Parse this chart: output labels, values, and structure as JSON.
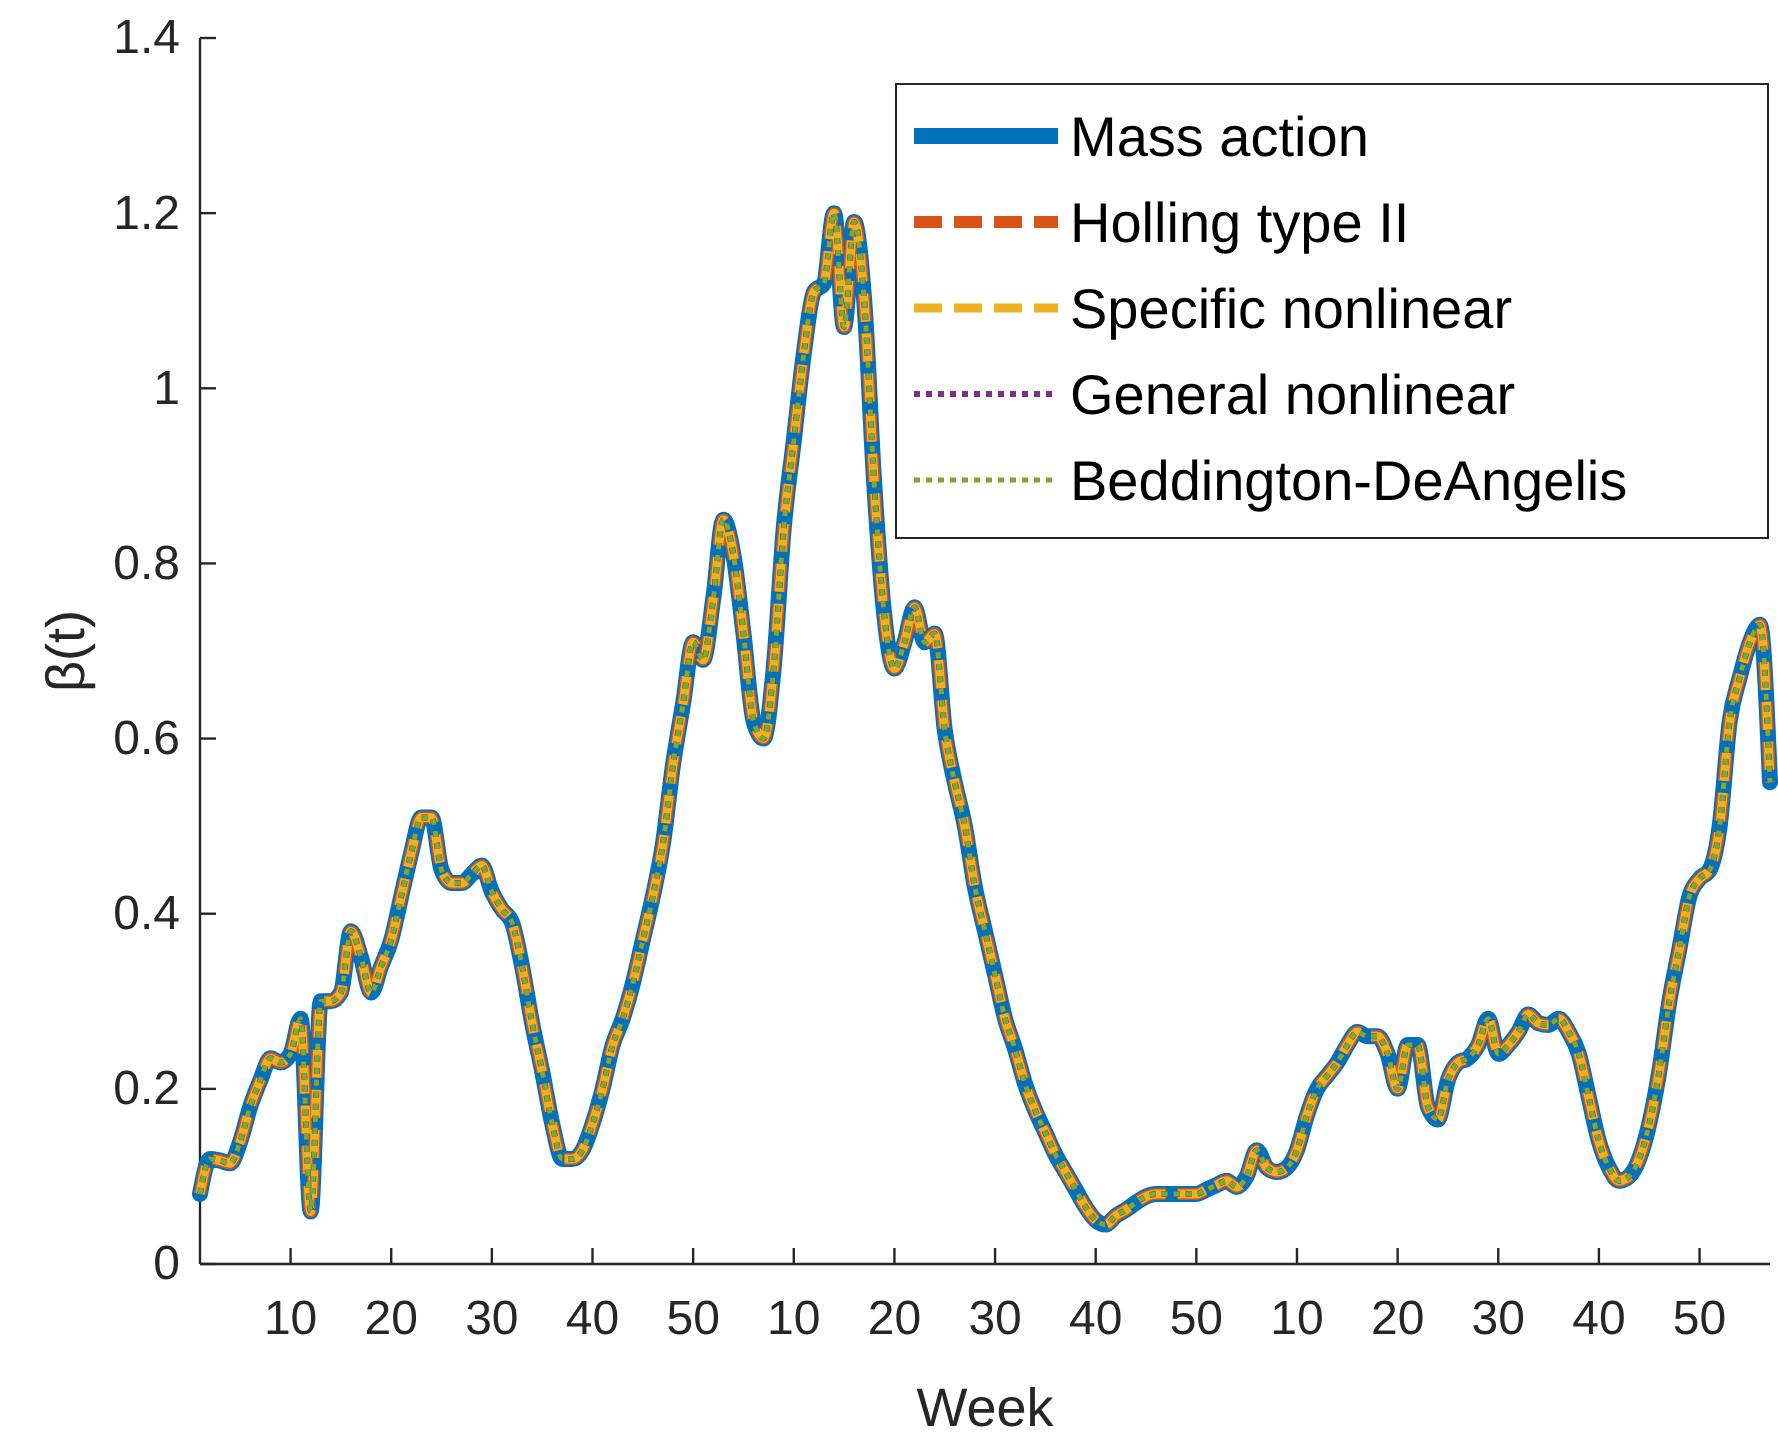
{
  "chart_data": {
    "type": "line",
    "xlabel": "Week",
    "ylabel": "β(t)",
    "categories": [
      null,
      null,
      null,
      null,
      null,
      null,
      null,
      null,
      null,
      "10",
      null,
      null,
      null,
      null,
      null,
      null,
      null,
      null,
      null,
      "20",
      null,
      null,
      null,
      null,
      null,
      null,
      null,
      null,
      null,
      "30",
      null,
      null,
      null,
      null,
      null,
      null,
      null,
      null,
      null,
      "40",
      null,
      null,
      null,
      null,
      null,
      null,
      null,
      null,
      null,
      "50",
      null,
      null,
      null,
      null,
      null,
      null,
      null,
      null,
      null,
      "10",
      null,
      null,
      null,
      null,
      null,
      null,
      null,
      null,
      null,
      "20",
      null,
      null,
      null,
      null,
      null,
      null,
      null,
      null,
      null,
      "30",
      null,
      null,
      null,
      null,
      null,
      null,
      null,
      null,
      null,
      "40",
      null,
      null,
      null,
      null,
      null,
      null,
      null,
      null,
      null,
      "50",
      null,
      null,
      null,
      null,
      null,
      null,
      null,
      null,
      null,
      "10",
      null,
      null,
      null,
      null,
      null,
      null,
      null,
      null,
      null,
      "20",
      null,
      null,
      null,
      null,
      null,
      null,
      null,
      null,
      null,
      "30",
      null,
      null,
      null,
      null,
      null,
      null,
      null,
      null,
      null,
      "40",
      null,
      null,
      null,
      null,
      null,
      null,
      null,
      null,
      null,
      "50",
      null,
      null,
      null,
      null,
      null,
      null,
      null
    ],
    "series": [
      {
        "name": "Mass action",
        "color": "#0072bd",
        "line_style": "solid",
        "values": [
          0.08,
          0.12,
          0.118,
          0.115,
          0.14,
          0.18,
          0.21,
          0.235,
          0.23,
          0.24,
          0.28,
          0.06,
          0.3,
          0.3,
          0.31,
          0.38,
          0.35,
          0.31,
          0.34,
          0.37,
          0.42,
          0.47,
          0.51,
          0.51,
          0.45,
          0.435,
          0.435,
          0.445,
          0.455,
          0.425,
          0.405,
          0.39,
          0.34,
          0.275,
          0.22,
          0.16,
          0.12,
          0.12,
          0.13,
          0.16,
          0.2,
          0.25,
          0.28,
          0.32,
          0.37,
          0.42,
          0.48,
          0.57,
          0.64,
          0.71,
          0.69,
          0.76,
          0.85,
          0.81,
          0.72,
          0.62,
          0.6,
          0.68,
          0.84,
          0.94,
          1.04,
          1.11,
          1.12,
          1.2,
          1.07,
          1.19,
          1.1,
          0.89,
          0.74,
          0.68,
          0.71,
          0.75,
          0.71,
          0.72,
          0.61,
          0.55,
          0.5,
          0.43,
          0.38,
          0.33,
          0.28,
          0.245,
          0.205,
          0.175,
          0.15,
          0.125,
          0.105,
          0.085,
          0.065,
          0.05,
          0.045,
          0.055,
          0.062,
          0.07,
          0.077,
          0.08,
          0.08,
          0.08,
          0.08,
          0.08,
          0.085,
          0.09,
          0.095,
          0.088,
          0.1,
          0.13,
          0.11,
          0.105,
          0.11,
          0.13,
          0.17,
          0.2,
          0.215,
          0.23,
          0.25,
          0.265,
          0.26,
          0.26,
          0.24,
          0.2,
          0.25,
          0.25,
          0.18,
          0.165,
          0.21,
          0.23,
          0.235,
          0.25,
          0.28,
          0.24,
          0.25,
          0.265,
          0.285,
          0.275,
          0.273,
          0.28,
          0.265,
          0.24,
          0.19,
          0.14,
          0.11,
          0.095,
          0.1,
          0.12,
          0.16,
          0.22,
          0.3,
          0.36,
          0.42,
          0.44,
          0.45,
          0.5,
          0.62,
          0.67,
          0.71,
          0.73,
          0.55
        ]
      },
      {
        "name": "Holling type II",
        "color": "#d95319",
        "line_style": "dashed",
        "values": [
          0.08,
          0.12,
          0.118,
          0.115,
          0.14,
          0.18,
          0.21,
          0.235,
          0.23,
          0.24,
          0.28,
          0.06,
          0.3,
          0.3,
          0.31,
          0.38,
          0.35,
          0.31,
          0.34,
          0.37,
          0.42,
          0.47,
          0.51,
          0.51,
          0.45,
          0.435,
          0.435,
          0.445,
          0.455,
          0.425,
          0.405,
          0.39,
          0.34,
          0.275,
          0.22,
          0.16,
          0.12,
          0.12,
          0.13,
          0.16,
          0.2,
          0.25,
          0.28,
          0.32,
          0.37,
          0.42,
          0.48,
          0.57,
          0.64,
          0.71,
          0.69,
          0.76,
          0.85,
          0.81,
          0.72,
          0.62,
          0.6,
          0.68,
          0.84,
          0.94,
          1.04,
          1.11,
          1.12,
          1.2,
          1.07,
          1.19,
          1.1,
          0.89,
          0.74,
          0.68,
          0.71,
          0.75,
          0.71,
          0.72,
          0.61,
          0.55,
          0.5,
          0.43,
          0.38,
          0.33,
          0.28,
          0.245,
          0.205,
          0.175,
          0.15,
          0.125,
          0.105,
          0.085,
          0.065,
          0.05,
          0.045,
          0.055,
          0.062,
          0.07,
          0.077,
          0.08,
          0.08,
          0.08,
          0.08,
          0.08,
          0.085,
          0.09,
          0.095,
          0.088,
          0.1,
          0.13,
          0.11,
          0.105,
          0.11,
          0.13,
          0.17,
          0.2,
          0.215,
          0.23,
          0.25,
          0.265,
          0.26,
          0.26,
          0.24,
          0.2,
          0.25,
          0.25,
          0.18,
          0.165,
          0.21,
          0.23,
          0.235,
          0.25,
          0.28,
          0.24,
          0.25,
          0.265,
          0.285,
          0.275,
          0.273,
          0.28,
          0.265,
          0.24,
          0.19,
          0.14,
          0.11,
          0.095,
          0.1,
          0.12,
          0.16,
          0.22,
          0.3,
          0.36,
          0.42,
          0.44,
          0.45,
          0.5,
          0.62,
          0.67,
          0.71,
          0.73,
          0.55
        ]
      },
      {
        "name": "Specific nonlinear",
        "color": "#edb120",
        "line_style": "dashed",
        "values": [
          0.08,
          0.12,
          0.118,
          0.115,
          0.14,
          0.18,
          0.21,
          0.235,
          0.23,
          0.24,
          0.28,
          0.06,
          0.3,
          0.3,
          0.31,
          0.38,
          0.35,
          0.31,
          0.34,
          0.37,
          0.42,
          0.47,
          0.51,
          0.51,
          0.45,
          0.435,
          0.435,
          0.445,
          0.455,
          0.425,
          0.405,
          0.39,
          0.34,
          0.275,
          0.22,
          0.16,
          0.12,
          0.12,
          0.13,
          0.16,
          0.2,
          0.25,
          0.28,
          0.32,
          0.37,
          0.42,
          0.48,
          0.57,
          0.64,
          0.71,
          0.69,
          0.76,
          0.85,
          0.81,
          0.72,
          0.62,
          0.6,
          0.68,
          0.84,
          0.94,
          1.04,
          1.11,
          1.12,
          1.2,
          1.07,
          1.19,
          1.1,
          0.89,
          0.74,
          0.68,
          0.71,
          0.75,
          0.71,
          0.72,
          0.61,
          0.55,
          0.5,
          0.43,
          0.38,
          0.33,
          0.28,
          0.245,
          0.205,
          0.175,
          0.15,
          0.125,
          0.105,
          0.085,
          0.065,
          0.05,
          0.045,
          0.055,
          0.062,
          0.07,
          0.077,
          0.08,
          0.08,
          0.08,
          0.08,
          0.08,
          0.085,
          0.09,
          0.095,
          0.088,
          0.1,
          0.13,
          0.11,
          0.105,
          0.11,
          0.13,
          0.17,
          0.2,
          0.215,
          0.23,
          0.25,
          0.265,
          0.26,
          0.26,
          0.24,
          0.2,
          0.25,
          0.25,
          0.18,
          0.165,
          0.21,
          0.23,
          0.235,
          0.25,
          0.28,
          0.24,
          0.25,
          0.265,
          0.285,
          0.275,
          0.273,
          0.28,
          0.265,
          0.24,
          0.19,
          0.14,
          0.11,
          0.095,
          0.1,
          0.12,
          0.16,
          0.22,
          0.3,
          0.36,
          0.42,
          0.44,
          0.45,
          0.5,
          0.62,
          0.67,
          0.71,
          0.73,
          0.55
        ]
      },
      {
        "name": "General nonlinear",
        "color": "#7e2f8e",
        "line_style": "dotted",
        "values": [
          0.08,
          0.12,
          0.118,
          0.115,
          0.14,
          0.18,
          0.21,
          0.235,
          0.23,
          0.24,
          0.28,
          0.06,
          0.3,
          0.3,
          0.31,
          0.38,
          0.35,
          0.31,
          0.34,
          0.37,
          0.42,
          0.47,
          0.51,
          0.51,
          0.45,
          0.435,
          0.435,
          0.445,
          0.455,
          0.425,
          0.405,
          0.39,
          0.34,
          0.275,
          0.22,
          0.16,
          0.12,
          0.12,
          0.13,
          0.16,
          0.2,
          0.25,
          0.28,
          0.32,
          0.37,
          0.42,
          0.48,
          0.57,
          0.64,
          0.71,
          0.69,
          0.76,
          0.85,
          0.81,
          0.72,
          0.62,
          0.6,
          0.68,
          0.84,
          0.94,
          1.04,
          1.11,
          1.12,
          1.2,
          1.07,
          1.19,
          1.1,
          0.89,
          0.74,
          0.68,
          0.71,
          0.75,
          0.71,
          0.72,
          0.61,
          0.55,
          0.5,
          0.43,
          0.38,
          0.33,
          0.28,
          0.245,
          0.205,
          0.175,
          0.15,
          0.125,
          0.105,
          0.085,
          0.065,
          0.05,
          0.045,
          0.055,
          0.062,
          0.07,
          0.077,
          0.08,
          0.08,
          0.08,
          0.08,
          0.08,
          0.085,
          0.09,
          0.095,
          0.088,
          0.1,
          0.13,
          0.11,
          0.105,
          0.11,
          0.13,
          0.17,
          0.2,
          0.215,
          0.23,
          0.25,
          0.265,
          0.26,
          0.26,
          0.24,
          0.2,
          0.25,
          0.25,
          0.18,
          0.165,
          0.21,
          0.23,
          0.235,
          0.25,
          0.28,
          0.24,
          0.25,
          0.265,
          0.285,
          0.275,
          0.273,
          0.28,
          0.265,
          0.24,
          0.19,
          0.14,
          0.11,
          0.095,
          0.1,
          0.12,
          0.16,
          0.22,
          0.3,
          0.36,
          0.42,
          0.44,
          0.45,
          0.5,
          0.62,
          0.67,
          0.71,
          0.73,
          0.55
        ]
      },
      {
        "name": "Beddington-DeAngelis",
        "color": "#77ac30",
        "line_style": "dotted",
        "values": [
          0.08,
          0.12,
          0.118,
          0.115,
          0.14,
          0.18,
          0.21,
          0.235,
          0.23,
          0.24,
          0.28,
          0.06,
          0.3,
          0.3,
          0.31,
          0.38,
          0.35,
          0.31,
          0.34,
          0.37,
          0.42,
          0.47,
          0.51,
          0.51,
          0.45,
          0.435,
          0.435,
          0.445,
          0.455,
          0.425,
          0.405,
          0.39,
          0.34,
          0.275,
          0.22,
          0.16,
          0.12,
          0.12,
          0.13,
          0.16,
          0.2,
          0.25,
          0.28,
          0.32,
          0.37,
          0.42,
          0.48,
          0.57,
          0.64,
          0.71,
          0.69,
          0.76,
          0.85,
          0.81,
          0.72,
          0.62,
          0.6,
          0.68,
          0.84,
          0.94,
          1.04,
          1.11,
          1.12,
          1.2,
          1.07,
          1.19,
          1.1,
          0.89,
          0.74,
          0.68,
          0.71,
          0.75,
          0.71,
          0.72,
          0.61,
          0.55,
          0.5,
          0.43,
          0.38,
          0.33,
          0.28,
          0.245,
          0.205,
          0.175,
          0.15,
          0.125,
          0.105,
          0.085,
          0.065,
          0.05,
          0.045,
          0.055,
          0.062,
          0.07,
          0.077,
          0.08,
          0.08,
          0.08,
          0.08,
          0.08,
          0.085,
          0.09,
          0.095,
          0.088,
          0.1,
          0.13,
          0.11,
          0.105,
          0.11,
          0.13,
          0.17,
          0.2,
          0.215,
          0.23,
          0.25,
          0.265,
          0.26,
          0.26,
          0.24,
          0.2,
          0.25,
          0.25,
          0.18,
          0.165,
          0.21,
          0.23,
          0.235,
          0.25,
          0.28,
          0.24,
          0.25,
          0.265,
          0.285,
          0.275,
          0.273,
          0.28,
          0.265,
          0.24,
          0.19,
          0.14,
          0.11,
          0.095,
          0.1,
          0.12,
          0.16,
          0.22,
          0.3,
          0.36,
          0.42,
          0.44,
          0.45,
          0.5,
          0.62,
          0.67,
          0.71,
          0.73,
          0.55
        ]
      }
    ],
    "ylim": [
      0,
      1.4
    ],
    "yticks": [
      0,
      0.2,
      0.4,
      0.6,
      0.8,
      1,
      1.2,
      1.4
    ],
    "legend": "top right",
    "grid": false
  }
}
